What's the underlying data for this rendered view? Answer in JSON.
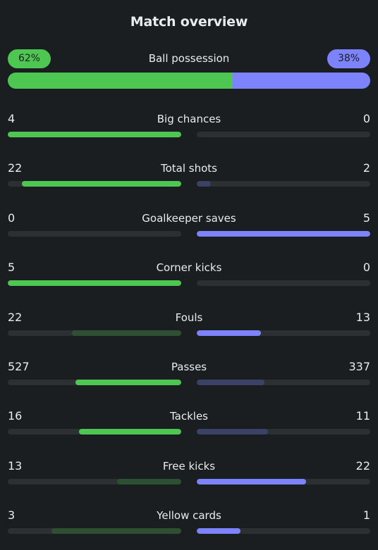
{
  "title": "Match overview",
  "colors": {
    "home": "#4ec752",
    "away": "#7d83fa",
    "home_dim": "#2f4f32",
    "away_dim": "#3c4266",
    "track": "#2c3033"
  },
  "possession": {
    "label": "Ball possession",
    "home": "62%",
    "away": "38%",
    "home_fraction": 0.62
  },
  "stats": [
    {
      "label": "Big chances",
      "home": "4",
      "away": "0",
      "home_fill": 1.0,
      "away_fill": 0.0,
      "home_strong": true,
      "away_strong": true
    },
    {
      "label": "Total shots",
      "home": "22",
      "away": "2",
      "home_fill": 0.92,
      "away_fill": 0.08,
      "home_strong": true,
      "away_strong": false
    },
    {
      "label": "Goalkeeper saves",
      "home": "0",
      "away": "5",
      "home_fill": 0.0,
      "away_fill": 1.0,
      "home_strong": true,
      "away_strong": true
    },
    {
      "label": "Corner kicks",
      "home": "5",
      "away": "0",
      "home_fill": 1.0,
      "away_fill": 0.0,
      "home_strong": true,
      "away_strong": true
    },
    {
      "label": "Fouls",
      "home": "22",
      "away": "13",
      "home_fill": 0.63,
      "away_fill": 0.37,
      "home_strong": false,
      "away_strong": true
    },
    {
      "label": "Passes",
      "home": "527",
      "away": "337",
      "home_fill": 0.61,
      "away_fill": 0.39,
      "home_strong": true,
      "away_strong": false
    },
    {
      "label": "Tackles",
      "home": "16",
      "away": "11",
      "home_fill": 0.59,
      "away_fill": 0.41,
      "home_strong": true,
      "away_strong": false
    },
    {
      "label": "Free kicks",
      "home": "13",
      "away": "22",
      "home_fill": 0.37,
      "away_fill": 0.63,
      "home_strong": false,
      "away_strong": true
    },
    {
      "label": "Yellow cards",
      "home": "3",
      "away": "1",
      "home_fill": 0.75,
      "away_fill": 0.25,
      "home_strong": false,
      "away_strong": true
    }
  ]
}
